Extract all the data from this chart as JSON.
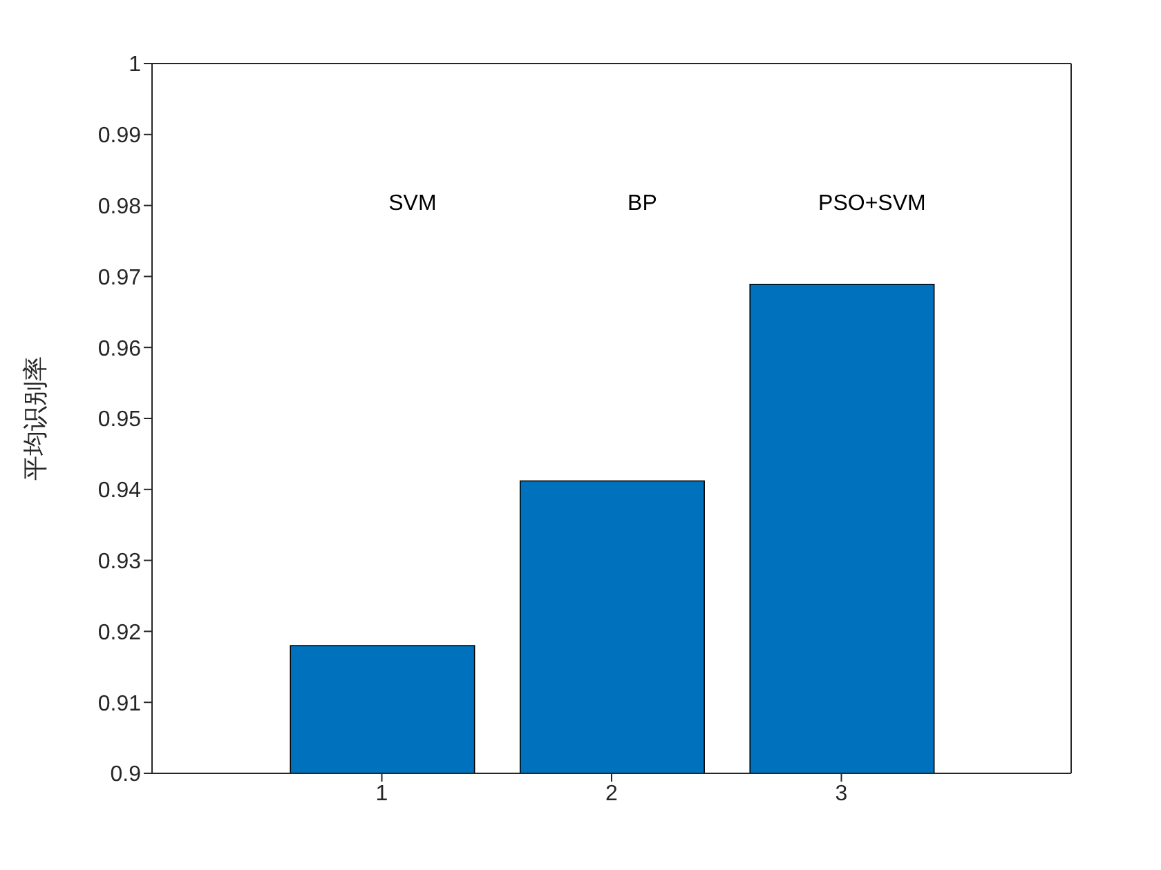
{
  "chart_data": {
    "type": "bar",
    "ylabel": "平均识别率",
    "x": [
      1,
      2,
      3
    ],
    "values": [
      0.918,
      0.9412,
      0.9689
    ],
    "color": "#0072bd",
    "xlim": [
      0,
      4
    ],
    "xticks": [
      1,
      2,
      3
    ],
    "ylim": [
      0.9,
      1
    ],
    "yticks": [
      0.9,
      0.91,
      0.92,
      0.93,
      0.94,
      0.95,
      0.96,
      0.97,
      0.98,
      0.99,
      1
    ],
    "grid": false,
    "legend": false,
    "annotations": [
      "SVM",
      "BP",
      "PSO+SVM"
    ]
  }
}
